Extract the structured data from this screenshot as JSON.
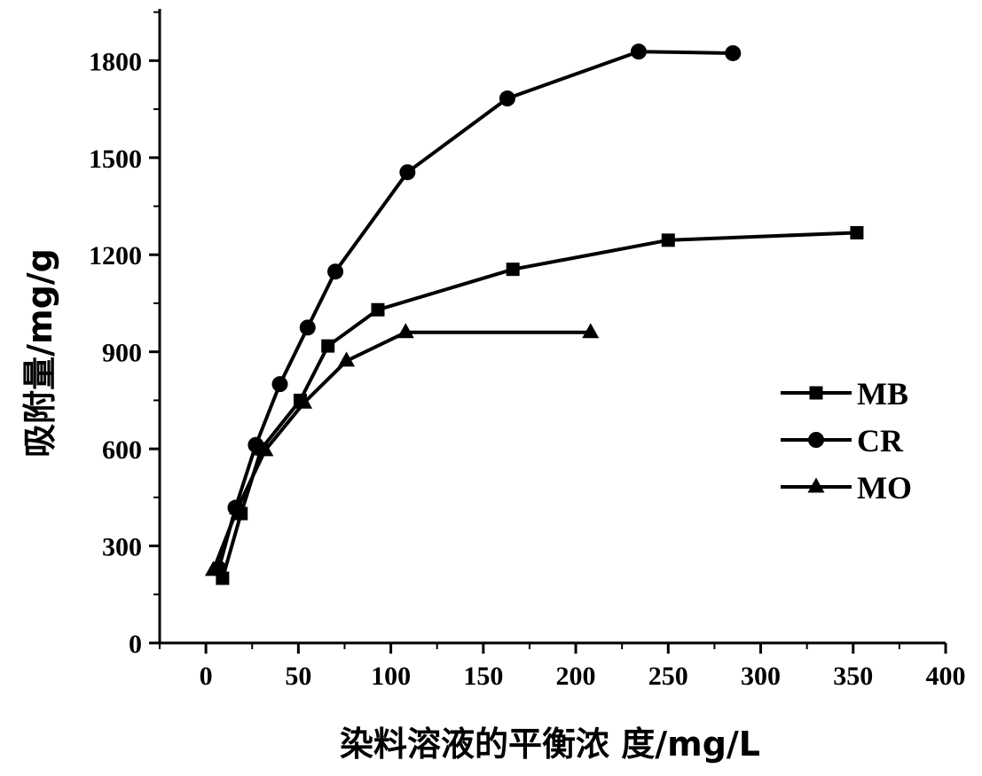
{
  "chart_data": {
    "type": "line",
    "xlabel": "染料溶液的平衡浓 度/mg/L",
    "ylabel": "吸附量/mg/g",
    "xlim": [
      -25,
      400
    ],
    "ylim": [
      0,
      1960
    ],
    "xticks": [
      0,
      50,
      100,
      150,
      200,
      250,
      300,
      350,
      400
    ],
    "yticks": [
      0,
      300,
      600,
      900,
      1200,
      1500,
      1800
    ],
    "x_tick_labels": [
      "0",
      "50",
      "100",
      "150",
      "200",
      "250",
      "300",
      "350",
      "400"
    ],
    "y_tick_labels": [
      "0",
      "300",
      "600",
      "900",
      "1200",
      "1500",
      "1800"
    ],
    "legend_position": "right",
    "series": [
      {
        "name": "MB",
        "marker": "square",
        "points": [
          [
            9,
            200
          ],
          [
            19,
            400
          ],
          [
            30,
            600
          ],
          [
            51,
            750
          ],
          [
            66,
            918
          ],
          [
            93,
            1030
          ],
          [
            166,
            1155
          ],
          [
            250,
            1245
          ],
          [
            352,
            1268
          ]
        ]
      },
      {
        "name": "CR",
        "marker": "circle",
        "points": [
          [
            7,
            230
          ],
          [
            16,
            418
          ],
          [
            27,
            612
          ],
          [
            40,
            800
          ],
          [
            55,
            975
          ],
          [
            70,
            1148
          ],
          [
            109,
            1455
          ],
          [
            163,
            1683
          ],
          [
            234,
            1828
          ],
          [
            285,
            1823
          ]
        ]
      },
      {
        "name": "MO",
        "marker": "triangle",
        "points": [
          [
            4,
            225
          ],
          [
            17,
            415
          ],
          [
            32,
            595
          ],
          [
            53,
            742
          ],
          [
            76,
            872
          ],
          [
            108,
            960
          ],
          [
            208,
            960
          ]
        ]
      }
    ]
  }
}
